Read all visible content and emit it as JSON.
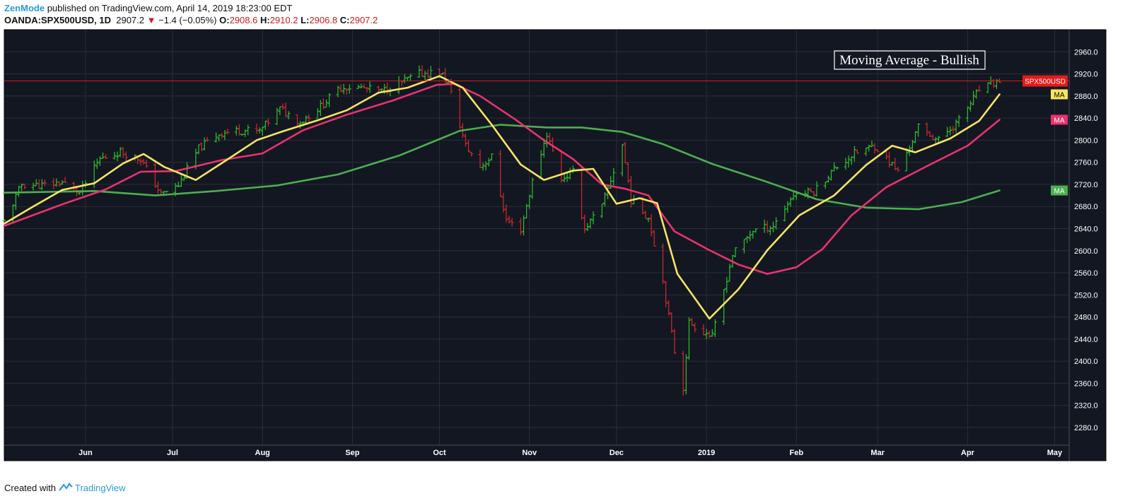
{
  "header": {
    "author": "ZenMode",
    "published_text": "published on TradingView.com, April 14, 2019 18:23:00 EDT",
    "symbol": "OANDA:SPX500USD, 1D",
    "last": "2907.2",
    "change": "−1.4 (−0.05%)",
    "open_label": "O:",
    "open": "2908.6",
    "high_label": "H:",
    "high": "2910.2",
    "low_label": "L:",
    "low": "2906.8",
    "close_label": "C:",
    "close": "2907.2"
  },
  "footer": {
    "created_with": "Created with",
    "brand": "TradingView"
  },
  "colors": {
    "background": "#131722",
    "up": "#2dc12d",
    "down": "#d42a2a",
    "ma_fast": "#f7e463",
    "ma_mid": "#e8336d",
    "ma_slow": "#4caf50",
    "price_line": "#c62020",
    "grid": "#2a2e39"
  },
  "chart_data": {
    "type": "ohlc",
    "title": "Moving Average - Bullish",
    "annotation": "Moving Average - Bullish",
    "y_ticks": [
      2960,
      2920,
      2880,
      2840,
      2800,
      2760,
      2720,
      2680,
      2640,
      2600,
      2560,
      2520,
      2480,
      2440,
      2400,
      2360,
      2320,
      2280
    ],
    "ylim": [
      2248,
      3000
    ],
    "x_ticks": [
      {
        "label": "Jun",
        "date": "2018-06-01"
      },
      {
        "label": "Jul",
        "date": "2018-07-01"
      },
      {
        "label": "Aug",
        "date": "2018-08-01"
      },
      {
        "label": "Sep",
        "date": "2018-09-01"
      },
      {
        "label": "Oct",
        "date": "2018-10-01"
      },
      {
        "label": "Nov",
        "date": "2018-11-01"
      },
      {
        "label": "Dec",
        "date": "2018-12-01"
      },
      {
        "label": "2019",
        "date": "2019-01-01"
      },
      {
        "label": "Feb",
        "date": "2019-02-01"
      },
      {
        "label": "Mar",
        "date": "2019-03-01"
      },
      {
        "label": "Apr",
        "date": "2019-04-01"
      },
      {
        "label": "May",
        "date": "2019-05-01"
      }
    ],
    "xlim": [
      "2018-05-04",
      "2019-05-06"
    ],
    "price_label": "SPX500USD",
    "current_price": 2907.2,
    "ma_labels": [
      "MA",
      "MA",
      "MA"
    ],
    "ma_label_values": [
      2883,
      2837,
      2709
    ],
    "close_path": [
      [
        "2018-05-04",
        2652
      ],
      [
        "2018-05-10",
        2720
      ],
      [
        "2018-05-17",
        2718
      ],
      [
        "2018-05-24",
        2724
      ],
      [
        "2018-05-30",
        2705
      ],
      [
        "2018-06-06",
        2766
      ],
      [
        "2018-06-13",
        2779
      ],
      [
        "2018-06-20",
        2766
      ],
      [
        "2018-06-27",
        2702
      ],
      [
        "2018-07-03",
        2718
      ],
      [
        "2018-07-10",
        2785
      ],
      [
        "2018-07-17",
        2812
      ],
      [
        "2018-07-24",
        2818
      ],
      [
        "2018-07-31",
        2816
      ],
      [
        "2018-08-07",
        2857
      ],
      [
        "2018-08-14",
        2833
      ],
      [
        "2018-08-21",
        2861
      ],
      [
        "2018-08-28",
        2896
      ],
      [
        "2018-09-04",
        2895
      ],
      [
        "2018-09-11",
        2888
      ],
      [
        "2018-09-18",
        2905
      ],
      [
        "2018-09-24",
        2920
      ],
      [
        "2018-10-01",
        2924
      ],
      [
        "2018-10-04",
        2903
      ],
      [
        "2018-10-10",
        2790
      ],
      [
        "2018-10-15",
        2752
      ],
      [
        "2018-10-19",
        2770
      ],
      [
        "2018-10-24",
        2655
      ],
      [
        "2018-10-29",
        2638
      ],
      [
        "2018-11-02",
        2725
      ],
      [
        "2018-11-07",
        2812
      ],
      [
        "2018-11-12",
        2730
      ],
      [
        "2018-11-16",
        2742
      ],
      [
        "2018-11-20",
        2640
      ],
      [
        "2018-11-26",
        2680
      ],
      [
        "2018-12-03",
        2792
      ],
      [
        "2018-12-06",
        2692
      ],
      [
        "2018-12-12",
        2660
      ],
      [
        "2018-12-17",
        2545
      ],
      [
        "2018-12-21",
        2418
      ],
      [
        "2018-12-24",
        2352
      ],
      [
        "2018-12-26",
        2470
      ],
      [
        "2019-01-03",
        2444
      ],
      [
        "2019-01-10",
        2593
      ],
      [
        "2019-01-17",
        2637
      ],
      [
        "2019-01-24",
        2645
      ],
      [
        "2019-01-31",
        2702
      ],
      [
        "2019-02-07",
        2707
      ],
      [
        "2019-02-14",
        2748
      ],
      [
        "2019-02-21",
        2776
      ],
      [
        "2019-02-28",
        2790
      ],
      [
        "2019-03-08",
        2743
      ],
      [
        "2019-03-15",
        2823
      ],
      [
        "2019-03-22",
        2800
      ],
      [
        "2019-03-29",
        2836
      ],
      [
        "2019-04-05",
        2891
      ],
      [
        "2019-04-12",
        2907
      ]
    ],
    "series": [
      {
        "name": "MA",
        "color": "#f7e463",
        "points": [
          [
            "2018-05-04",
            2649
          ],
          [
            "2018-05-14",
            2680
          ],
          [
            "2018-05-24",
            2710
          ],
          [
            "2018-06-04",
            2722
          ],
          [
            "2018-06-14",
            2758
          ],
          [
            "2018-06-21",
            2775
          ],
          [
            "2018-06-28",
            2752
          ],
          [
            "2018-07-09",
            2728
          ],
          [
            "2018-07-19",
            2762
          ],
          [
            "2018-07-30",
            2800
          ],
          [
            "2018-08-08",
            2816
          ],
          [
            "2018-08-20",
            2836
          ],
          [
            "2018-08-30",
            2854
          ],
          [
            "2018-09-10",
            2886
          ],
          [
            "2018-09-20",
            2895
          ],
          [
            "2018-10-01",
            2916
          ],
          [
            "2018-10-09",
            2895
          ],
          [
            "2018-10-19",
            2828
          ],
          [
            "2018-10-29",
            2756
          ],
          [
            "2018-11-06",
            2728
          ],
          [
            "2018-11-16",
            2745
          ],
          [
            "2018-11-23",
            2748
          ],
          [
            "2018-12-01",
            2685
          ],
          [
            "2018-12-09",
            2695
          ],
          [
            "2018-12-15",
            2686
          ],
          [
            "2018-12-22",
            2558
          ],
          [
            "2019-01-02",
            2477
          ],
          [
            "2019-01-12",
            2530
          ],
          [
            "2019-01-22",
            2601
          ],
          [
            "2019-02-02",
            2664
          ],
          [
            "2019-02-14",
            2700
          ],
          [
            "2019-02-25",
            2755
          ],
          [
            "2019-03-06",
            2790
          ],
          [
            "2019-03-14",
            2778
          ],
          [
            "2019-03-26",
            2803
          ],
          [
            "2019-04-05",
            2835
          ],
          [
            "2019-04-12",
            2883
          ]
        ]
      },
      {
        "name": "MA",
        "color": "#e8336d",
        "points": [
          [
            "2018-05-04",
            2645
          ],
          [
            "2018-05-24",
            2684
          ],
          [
            "2018-06-08",
            2711
          ],
          [
            "2018-06-20",
            2743
          ],
          [
            "2018-07-02",
            2744
          ],
          [
            "2018-07-18",
            2764
          ],
          [
            "2018-08-01",
            2776
          ],
          [
            "2018-08-15",
            2818
          ],
          [
            "2018-08-30",
            2846
          ],
          [
            "2018-09-15",
            2872
          ],
          [
            "2018-09-30",
            2900
          ],
          [
            "2018-10-06",
            2902
          ],
          [
            "2018-10-15",
            2880
          ],
          [
            "2018-10-27",
            2838
          ],
          [
            "2018-11-06",
            2800
          ],
          [
            "2018-11-16",
            2766
          ],
          [
            "2018-11-26",
            2720
          ],
          [
            "2018-12-04",
            2712
          ],
          [
            "2018-12-12",
            2700
          ],
          [
            "2018-12-21",
            2635
          ],
          [
            "2019-01-02",
            2601
          ],
          [
            "2019-01-12",
            2575
          ],
          [
            "2019-01-22",
            2558
          ],
          [
            "2019-02-01",
            2570
          ],
          [
            "2019-02-10",
            2603
          ],
          [
            "2019-02-20",
            2664
          ],
          [
            "2019-03-04",
            2715
          ],
          [
            "2019-03-18",
            2753
          ],
          [
            "2019-04-01",
            2790
          ],
          [
            "2019-04-12",
            2837
          ]
        ]
      },
      {
        "name": "MA",
        "color": "#4caf50",
        "points": [
          [
            "2018-05-04",
            2705
          ],
          [
            "2018-06-04",
            2708
          ],
          [
            "2018-06-25",
            2700
          ],
          [
            "2018-07-16",
            2708
          ],
          [
            "2018-08-06",
            2718
          ],
          [
            "2018-08-27",
            2738
          ],
          [
            "2018-09-17",
            2772
          ],
          [
            "2018-10-08",
            2817
          ],
          [
            "2018-10-22",
            2828
          ],
          [
            "2018-11-07",
            2823
          ],
          [
            "2018-11-19",
            2823
          ],
          [
            "2018-12-03",
            2815
          ],
          [
            "2018-12-17",
            2793
          ],
          [
            "2019-01-03",
            2757
          ],
          [
            "2019-01-21",
            2726
          ],
          [
            "2019-02-08",
            2693
          ],
          [
            "2019-02-25",
            2678
          ],
          [
            "2019-03-15",
            2675
          ],
          [
            "2019-03-30",
            2688
          ],
          [
            "2019-04-12",
            2709
          ]
        ]
      }
    ]
  }
}
